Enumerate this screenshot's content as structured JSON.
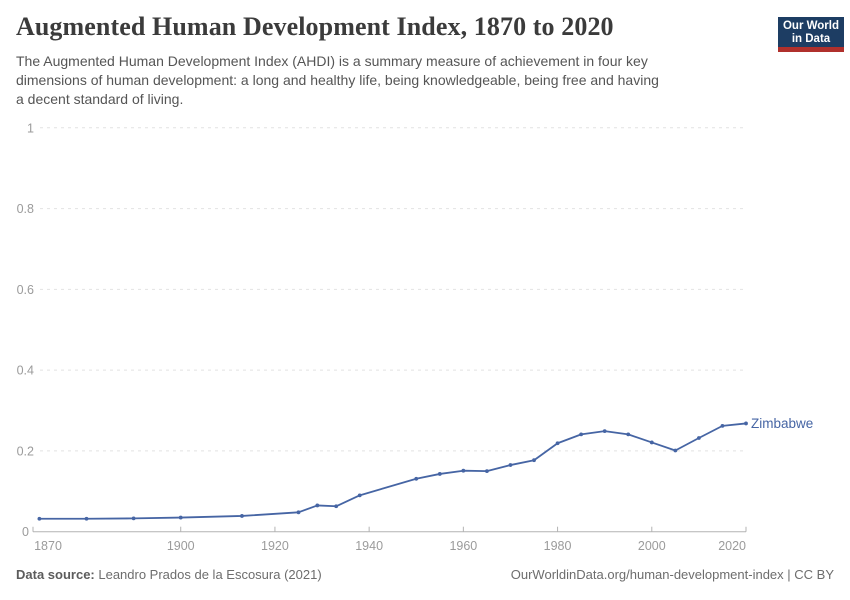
{
  "header": {
    "title": "Augmented Human Development Index, 1870 to 2020",
    "logo": {
      "line1": "Our World",
      "line2": "in Data"
    }
  },
  "subtitle": "The Augmented Human Development Index (AHDI) is a summary measure of achievement in four key dimensions of human development: a long and healthy life, being knowledgeable, being free and having a decent standard of living.",
  "chart_data": {
    "type": "line",
    "title": "Augmented Human Development Index, 1870 to 2020",
    "entity": "Zimbabwe",
    "x": [
      1870,
      1880,
      1890,
      1900,
      1913,
      1925,
      1929,
      1933,
      1938,
      1950,
      1955,
      1960,
      1965,
      1970,
      1975,
      1980,
      1985,
      1990,
      1995,
      2000,
      2005,
      2010,
      2015,
      2020
    ],
    "values": [
      0.032,
      0.032,
      0.033,
      0.035,
      0.039,
      0.048,
      0.065,
      0.063,
      0.09,
      0.131,
      0.143,
      0.151,
      0.15,
      0.165,
      0.177,
      0.219,
      0.241,
      0.249,
      0.241,
      0.221,
      0.201,
      0.232,
      0.262,
      0.268
    ],
    "xlabel": "",
    "ylabel": "",
    "xlim": [
      1870,
      2020
    ],
    "ylim": [
      0,
      1
    ],
    "x_ticks": [
      1870,
      1900,
      1920,
      1940,
      1960,
      1980,
      2000,
      2020
    ],
    "y_ticks": [
      0,
      0.2,
      0.4,
      0.6,
      0.8,
      1
    ],
    "grid": "horizontal-dashed",
    "legend_position": "end-of-line-label"
  },
  "colors": {
    "line": "#4665a4",
    "entity_label": "#4665a4",
    "logo_navy": "#1d3d63",
    "logo_red": "#b0302c",
    "gridline": "#e2e2e2",
    "axis": "#b3b3b3",
    "tick_text": "#9b9b9b"
  },
  "footer": {
    "source_label": "Data source:",
    "source_text": " Leandro Prados de la Escosura (2021)",
    "right_text": "OurWorldinData.org/human-development-index | CC BY"
  }
}
